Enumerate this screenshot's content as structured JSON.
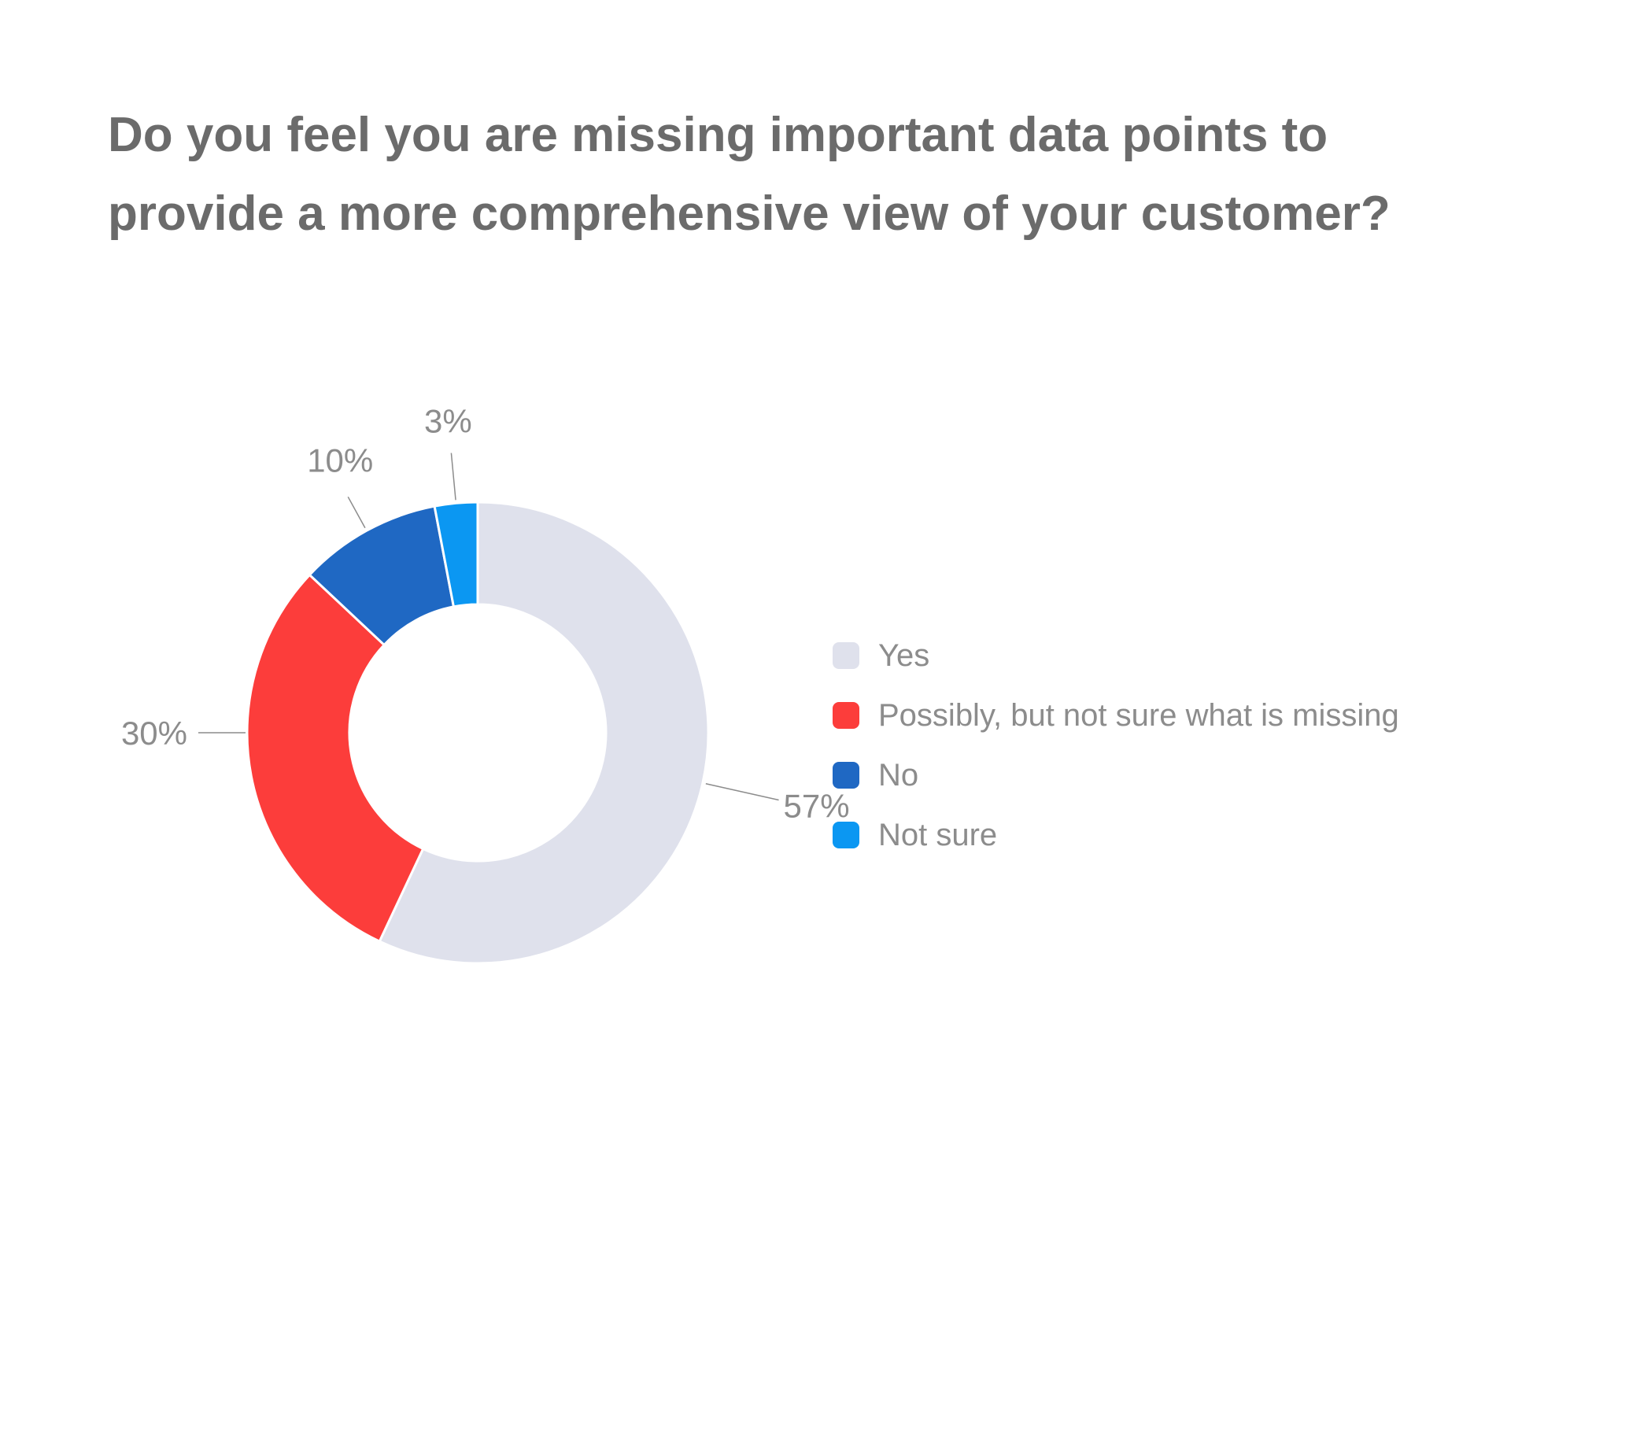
{
  "chart_data": {
    "type": "pie",
    "variant": "donut",
    "title_lines": [
      "Do you feel you are missing important data points to",
      "provide a more comprehensive view of your customer?"
    ],
    "slices": [
      {
        "label": "Yes",
        "value": 57,
        "display": "57%",
        "color": "#dfe1ec"
      },
      {
        "label": "Possibly, but not sure what is missing",
        "value": 30,
        "display": "30%",
        "color": "#fc3d3b"
      },
      {
        "label": "No",
        "value": 10,
        "display": "10%",
        "color": "#1f68c3"
      },
      {
        "label": "Not sure",
        "value": 3,
        "display": "3%",
        "color": "#0b97f2"
      }
    ],
    "legend_position": "right"
  }
}
